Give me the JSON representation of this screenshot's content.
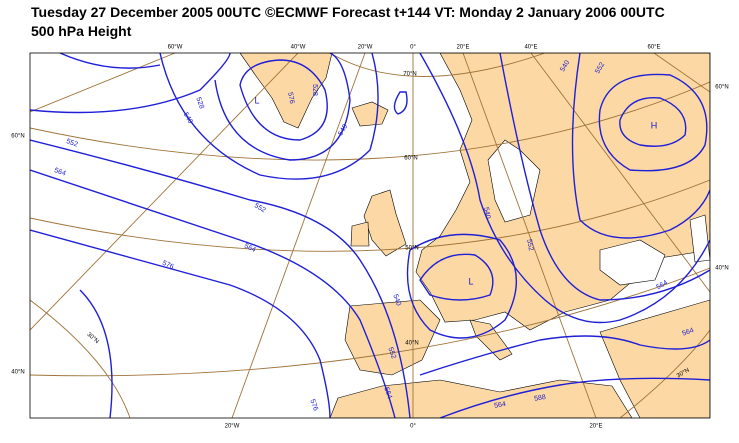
{
  "header": {
    "title": "Tuesday 27 December 2005 00UTC ©ECMWF Forecast t+144 VT: Monday 2 January 2006 00UTC",
    "subtitle": "500 hPa Height"
  },
  "map": {
    "top_labels": [
      "60°W",
      "40°W",
      "20°W",
      "0°",
      "20°E",
      "40°E",
      "60°E"
    ],
    "right_labels": [
      "60°N",
      "40°N"
    ],
    "left_labels": [
      "60°N",
      "40°N"
    ],
    "bottom_labels": [
      "20°W",
      "0°",
      "20°E"
    ],
    "inner_labels": [
      "70°N",
      "60°N",
      "50°N",
      "40°N",
      "30°N",
      "30°N"
    ],
    "contour_labels": [
      "528",
      "540",
      "576",
      "528",
      "552",
      "564",
      "540",
      "552",
      "564",
      "576",
      "540",
      "552",
      "564",
      "576",
      "564",
      "588",
      "552",
      "540",
      "540",
      "552",
      "564",
      "564"
    ],
    "pressure_centers": [
      "L",
      "L",
      "H"
    ]
  }
}
